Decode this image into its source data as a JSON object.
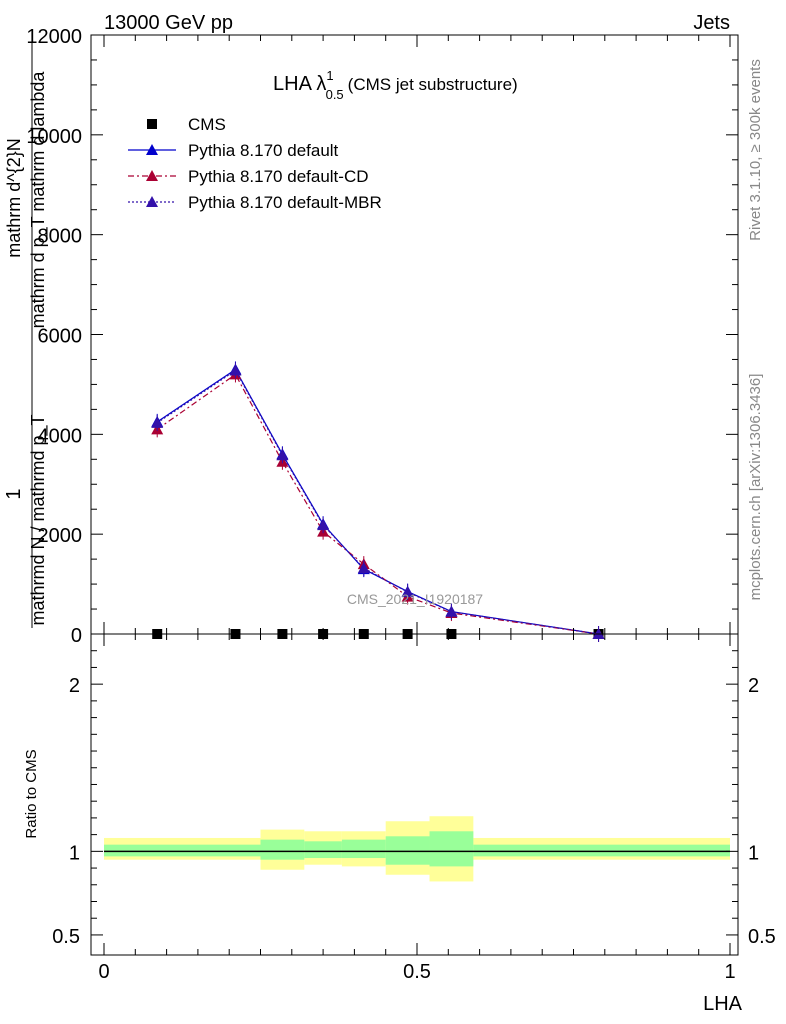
{
  "header": {
    "energy_label": "13000 GeV pp",
    "process_label": "Jets"
  },
  "side_labels": {
    "rivet_events": "Rivet 3.1.10, ≥ 300k events",
    "mcplots": "mcplots.cern.ch [arXiv:1306.3436]"
  },
  "watermark": "CMS_2021_I1920187",
  "chart_data": [
    {
      "type": "line",
      "title": "LHA λ",
      "title_sup": "1",
      "title_sub": "0.5",
      "title_suffix": "(CMS jet substructure)",
      "ylabel_top": "1",
      "ylabel_bottom": "mathrmd N / mathrmd p_T",
      "ylabel_frac_num": "mathrm d^{2}N",
      "ylabel_frac_den": "mathrm d p_T mathrm d lambda",
      "ylim": [
        0,
        12000
      ],
      "yticks": [
        0,
        2000,
        4000,
        6000,
        8000,
        10000,
        12000
      ],
      "ytick_labels": [
        "0",
        "2000",
        "4000",
        "6000",
        "8000",
        "10000",
        "12000"
      ],
      "xlim": [
        -0.02,
        1.0
      ],
      "legend_position": "top-left",
      "x": [
        0.085,
        0.21,
        0.285,
        0.35,
        0.415,
        0.485,
        0.555,
        0.79
      ],
      "series": [
        {
          "name": "CMS",
          "style": "square",
          "color": "#000000",
          "values": [
            0,
            0,
            0,
            0,
            0,
            0,
            0,
            0
          ]
        },
        {
          "name": "Pythia 8.170 default",
          "style": "solid",
          "color": "#0000cc",
          "values": [
            4250,
            5300,
            3600,
            2200,
            1300,
            850,
            450,
            0
          ]
        },
        {
          "name": "Pythia 8.170 default-CD",
          "style": "dashdot",
          "color": "#aa0033",
          "values": [
            4100,
            5200,
            3450,
            2050,
            1400,
            750,
            420,
            0
          ]
        },
        {
          "name": "Pythia 8.170 default-MBR",
          "style": "dotted",
          "color": "#3311aa",
          "values": [
            4230,
            5280,
            3580,
            2180,
            1320,
            840,
            445,
            0
          ]
        }
      ]
    },
    {
      "type": "area",
      "ylabel": "Ratio to CMS",
      "xlabel": "LHA",
      "ylim": [
        0.38,
        2.3
      ],
      "yticks": [
        0.5,
        1,
        2
      ],
      "ytick_labels": [
        "0.5",
        "1",
        "2"
      ],
      "xticks": [
        0,
        0.5,
        1
      ],
      "xtick_labels": [
        "0",
        "0.5",
        "1"
      ],
      "xlim": [
        -0.02,
        1.0
      ],
      "reference_line": 1,
      "bands": [
        {
          "x_start": 0.0,
          "x_end": 0.25,
          "green_low": 0.97,
          "green_high": 1.04,
          "yellow_low": 0.95,
          "yellow_high": 1.08
        },
        {
          "x_start": 0.25,
          "x_end": 0.32,
          "green_low": 0.95,
          "green_high": 1.07,
          "yellow_low": 0.89,
          "yellow_high": 1.13
        },
        {
          "x_start": 0.32,
          "x_end": 0.38,
          "green_low": 0.96,
          "green_high": 1.06,
          "yellow_low": 0.92,
          "yellow_high": 1.12
        },
        {
          "x_start": 0.38,
          "x_end": 0.45,
          "green_low": 0.96,
          "green_high": 1.07,
          "yellow_low": 0.91,
          "yellow_high": 1.12
        },
        {
          "x_start": 0.45,
          "x_end": 0.52,
          "green_low": 0.92,
          "green_high": 1.09,
          "yellow_low": 0.86,
          "yellow_high": 1.18
        },
        {
          "x_start": 0.52,
          "x_end": 0.59,
          "green_low": 0.91,
          "green_high": 1.12,
          "yellow_low": 0.82,
          "yellow_high": 1.21
        },
        {
          "x_start": 0.59,
          "x_end": 1.0,
          "green_low": 0.97,
          "green_high": 1.04,
          "yellow_low": 0.95,
          "yellow_high": 1.08
        }
      ]
    }
  ]
}
